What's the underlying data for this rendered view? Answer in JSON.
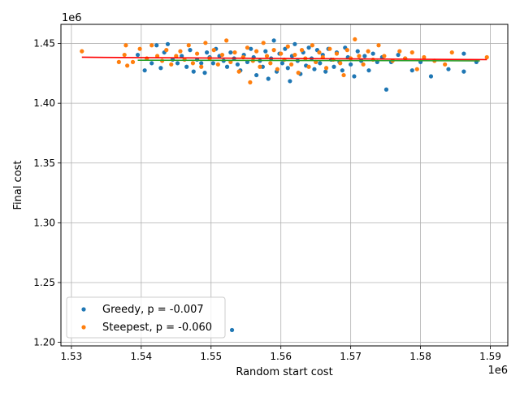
{
  "chart_data": {
    "type": "scatter",
    "title": "",
    "xlabel": "Random start cost",
    "ylabel": "Final cost",
    "x_multiplier_label": "1e6",
    "y_multiplier_label": "1e6",
    "xlim": [
      1.5285,
      1.5925
    ],
    "ylim": [
      1.197,
      1.466
    ],
    "x_ticks": [
      1.53,
      1.54,
      1.55,
      1.56,
      1.57,
      1.58,
      1.59
    ],
    "x_tick_labels": [
      "1.53",
      "1.54",
      "1.55",
      "1.56",
      "1.57",
      "1.58",
      "1.59"
    ],
    "y_ticks": [
      1.2,
      1.25,
      1.3,
      1.35,
      1.4,
      1.45
    ],
    "y_tick_labels": [
      "1.20",
      "1.25",
      "1.30",
      "1.35",
      "1.40",
      "1.45"
    ],
    "grid": true,
    "legend_position": "lower-left",
    "series": [
      {
        "name": "Greedy, p = -0.007",
        "color": "#1f77b4",
        "points": [
          [
            1.5395,
            1.4405
          ],
          [
            1.5405,
            1.4275
          ],
          [
            1.5415,
            1.4335
          ],
          [
            1.5422,
            1.4485
          ],
          [
            1.5428,
            1.4295
          ],
          [
            1.5433,
            1.4425
          ],
          [
            1.5438,
            1.4495
          ],
          [
            1.5445,
            1.4365
          ],
          [
            1.5452,
            1.4335
          ],
          [
            1.5458,
            1.4395
          ],
          [
            1.5465,
            1.4305
          ],
          [
            1.547,
            1.4445
          ],
          [
            1.5475,
            1.4265
          ],
          [
            1.548,
            1.4365
          ],
          [
            1.5486,
            1.4335
          ],
          [
            1.5491,
            1.4255
          ],
          [
            1.5494,
            1.4425
          ],
          [
            1.5498,
            1.4385
          ],
          [
            1.5503,
            1.4335
          ],
          [
            1.5507,
            1.4455
          ],
          [
            1.5512,
            1.4395
          ],
          [
            1.5518,
            1.4355
          ],
          [
            1.5523,
            1.4305
          ],
          [
            1.5528,
            1.4425
          ],
          [
            1.5533,
            1.4375
          ],
          [
            1.553,
            1.2103
          ],
          [
            1.5538,
            1.4325
          ],
          [
            1.5542,
            1.4275
          ],
          [
            1.5547,
            1.4405
          ],
          [
            1.5552,
            1.4345
          ],
          [
            1.5557,
            1.4455
          ],
          [
            1.5561,
            1.4385
          ],
          [
            1.5565,
            1.4235
          ],
          [
            1.557,
            1.4355
          ],
          [
            1.5574,
            1.4305
          ],
          [
            1.5578,
            1.4435
          ],
          [
            1.5582,
            1.4205
          ],
          [
            1.5586,
            1.4375
          ],
          [
            1.559,
            1.4525
          ],
          [
            1.5594,
            1.4265
          ],
          [
            1.5598,
            1.4415
          ],
          [
            1.5602,
            1.4335
          ],
          [
            1.5606,
            1.4455
          ],
          [
            1.561,
            1.4295
          ],
          [
            1.5613,
            1.4185
          ],
          [
            1.5616,
            1.4395
          ],
          [
            1.562,
            1.4495
          ],
          [
            1.5624,
            1.4355
          ],
          [
            1.5628,
            1.4245
          ],
          [
            1.5632,
            1.4425
          ],
          [
            1.5636,
            1.4315
          ],
          [
            1.564,
            1.4465
          ],
          [
            1.5644,
            1.4375
          ],
          [
            1.5648,
            1.4285
          ],
          [
            1.5652,
            1.4445
          ],
          [
            1.5656,
            1.4335
          ],
          [
            1.566,
            1.4405
          ],
          [
            1.5664,
            1.4265
          ],
          [
            1.5668,
            1.4455
          ],
          [
            1.5672,
            1.4365
          ],
          [
            1.5676,
            1.4305
          ],
          [
            1.568,
            1.4425
          ],
          [
            1.5684,
            1.4345
          ],
          [
            1.5688,
            1.4275
          ],
          [
            1.5692,
            1.4465
          ],
          [
            1.5696,
            1.4385
          ],
          [
            1.57,
            1.4325
          ],
          [
            1.5705,
            1.4225
          ],
          [
            1.571,
            1.4435
          ],
          [
            1.5715,
            1.4355
          ],
          [
            1.572,
            1.4395
          ],
          [
            1.5726,
            1.4275
          ],
          [
            1.5732,
            1.4415
          ],
          [
            1.5738,
            1.4345
          ],
          [
            1.5745,
            1.4385
          ],
          [
            1.5751,
            1.4115
          ],
          [
            1.5758,
            1.4345
          ],
          [
            1.5768,
            1.4405
          ],
          [
            1.5778,
            1.4375
          ],
          [
            1.5788,
            1.4275
          ],
          [
            1.58,
            1.4345
          ],
          [
            1.5815,
            1.4225
          ],
          [
            1.584,
            1.4285
          ],
          [
            1.5862,
            1.4415
          ],
          [
            1.5862,
            1.4265
          ],
          [
            1.588,
            1.4345
          ]
        ]
      },
      {
        "name": "Steepest, p = -0.060",
        "color": "#ff7f0e",
        "points": [
          [
            1.5315,
            1.4435
          ],
          [
            1.5368,
            1.4345
          ],
          [
            1.5376,
            1.4405
          ],
          [
            1.5378,
            1.4485
          ],
          [
            1.538,
            1.4315
          ],
          [
            1.5388,
            1.4345
          ],
          [
            1.5398,
            1.4455
          ],
          [
            1.5408,
            1.4375
          ],
          [
            1.5415,
            1.4485
          ],
          [
            1.5423,
            1.4395
          ],
          [
            1.543,
            1.4355
          ],
          [
            1.5436,
            1.4445
          ],
          [
            1.5443,
            1.4325
          ],
          [
            1.545,
            1.4395
          ],
          [
            1.5456,
            1.4435
          ],
          [
            1.5462,
            1.4365
          ],
          [
            1.5468,
            1.4485
          ],
          [
            1.5474,
            1.4335
          ],
          [
            1.548,
            1.4415
          ],
          [
            1.5486,
            1.4305
          ],
          [
            1.5492,
            1.4505
          ],
          [
            1.5498,
            1.4375
          ],
          [
            1.5504,
            1.4445
          ],
          [
            1.551,
            1.4325
          ],
          [
            1.5516,
            1.4405
          ],
          [
            1.5522,
            1.4525
          ],
          [
            1.5528,
            1.4345
          ],
          [
            1.5534,
            1.4425
          ],
          [
            1.554,
            1.4265
          ],
          [
            1.5546,
            1.4385
          ],
          [
            1.5552,
            1.4465
          ],
          [
            1.5556,
            1.4175
          ],
          [
            1.556,
            1.4355
          ],
          [
            1.5565,
            1.4435
          ],
          [
            1.557,
            1.4305
          ],
          [
            1.5575,
            1.4505
          ],
          [
            1.558,
            1.4395
          ],
          [
            1.5585,
            1.4335
          ],
          [
            1.559,
            1.4445
          ],
          [
            1.5595,
            1.4285
          ],
          [
            1.56,
            1.4415
          ],
          [
            1.5605,
            1.4365
          ],
          [
            1.561,
            1.4475
          ],
          [
            1.5615,
            1.4325
          ],
          [
            1.562,
            1.4405
          ],
          [
            1.5625,
            1.4255
          ],
          [
            1.563,
            1.4445
          ],
          [
            1.5635,
            1.4375
          ],
          [
            1.564,
            1.4305
          ],
          [
            1.5645,
            1.4485
          ],
          [
            1.565,
            1.4345
          ],
          [
            1.5655,
            1.4425
          ],
          [
            1.566,
            1.4385
          ],
          [
            1.5665,
            1.4295
          ],
          [
            1.567,
            1.4455
          ],
          [
            1.5675,
            1.4365
          ],
          [
            1.568,
            1.4415
          ],
          [
            1.5685,
            1.4335
          ],
          [
            1.569,
            1.4235
          ],
          [
            1.5695,
            1.4445
          ],
          [
            1.57,
            1.4375
          ],
          [
            1.5706,
            1.4535
          ],
          [
            1.5712,
            1.4395
          ],
          [
            1.5718,
            1.4325
          ],
          [
            1.5725,
            1.4435
          ],
          [
            1.5732,
            1.4365
          ],
          [
            1.574,
            1.4485
          ],
          [
            1.5748,
            1.4395
          ],
          [
            1.576,
            1.4355
          ],
          [
            1.577,
            1.4435
          ],
          [
            1.5778,
            1.4375
          ],
          [
            1.5788,
            1.4425
          ],
          [
            1.5795,
            1.4285
          ],
          [
            1.5805,
            1.4385
          ],
          [
            1.582,
            1.4355
          ],
          [
            1.5835,
            1.4325
          ],
          [
            1.5845,
            1.4425
          ],
          [
            1.5895,
            1.4385
          ]
        ]
      }
    ],
    "fit_lines": [
      {
        "series": "Greedy",
        "color": "#2ca02c",
        "x": [
          1.5395,
          1.5885
        ],
        "y": [
          1.436,
          1.4355
        ]
      },
      {
        "series": "Steepest",
        "color": "#ff0000",
        "x": [
          1.5315,
          1.5895
        ],
        "y": [
          1.4385,
          1.4365
        ]
      }
    ]
  }
}
